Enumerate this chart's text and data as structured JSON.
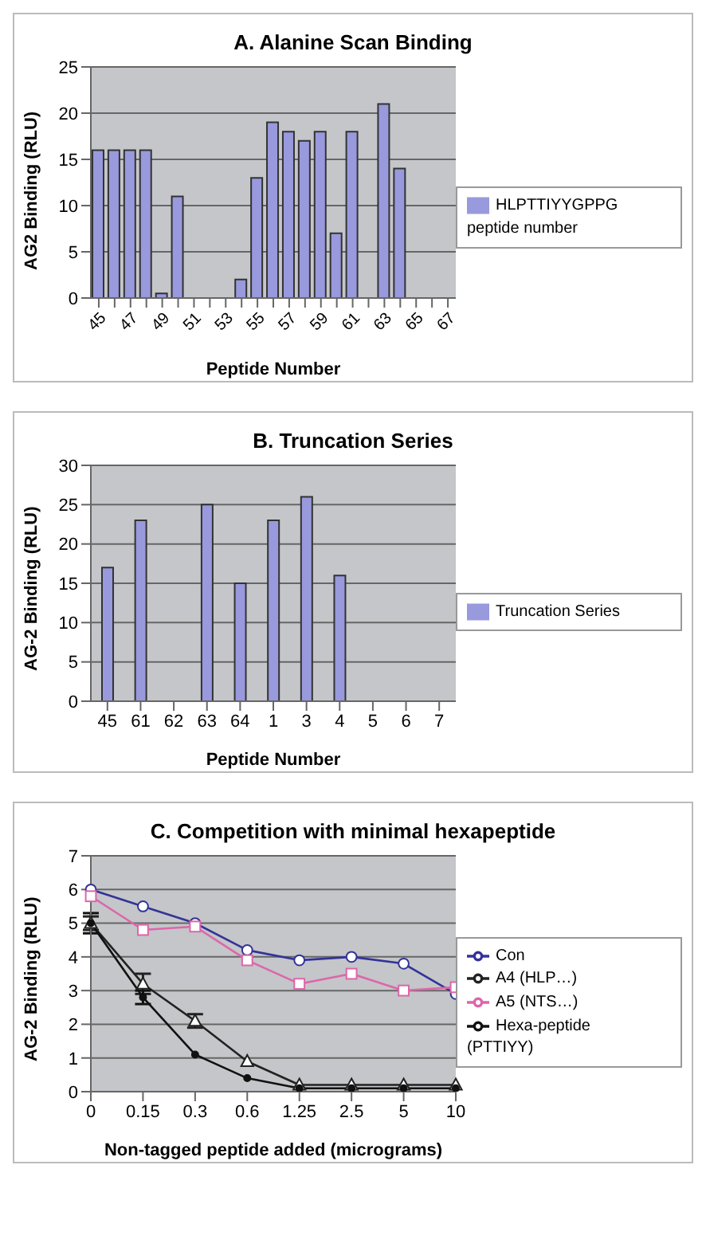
{
  "chart_data": [
    {
      "type": "bar",
      "title": "A. Alanine Scan Binding",
      "xlabel": "Peptide Number",
      "ylabel": "AG2 Binding (RLU)",
      "categories": [
        "45",
        null,
        "47",
        null,
        "49",
        null,
        "51",
        null,
        "53",
        null,
        "55",
        null,
        "57",
        null,
        "59",
        null,
        "61",
        null,
        "63",
        null,
        "65",
        null,
        "67"
      ],
      "series": [
        {
          "name": "HLPTTIYYGPPG peptide number",
          "color": "#9999dd",
          "values": [
            16,
            16,
            16,
            16,
            0.5,
            11,
            0,
            0,
            0,
            2,
            13,
            19,
            18,
            17,
            18,
            7,
            18,
            0,
            21,
            14,
            0,
            0,
            0
          ]
        }
      ],
      "ylim": [
        0,
        25
      ],
      "yticks": [
        0,
        5,
        10,
        15,
        20,
        25
      ],
      "grid": "y",
      "legend": "right"
    },
    {
      "type": "bar",
      "title": "B. Truncation Series",
      "xlabel": "Peptide Number",
      "ylabel": "AG-2 Binding (RLU)",
      "categories": [
        "45",
        "61",
        "62",
        "63",
        "64",
        "1",
        "3",
        "4",
        "5",
        "6",
        "7"
      ],
      "series": [
        {
          "name": "Truncation Series",
          "color": "#9999dd",
          "values": [
            17,
            23,
            0,
            25,
            15,
            23,
            26,
            16,
            0,
            0,
            0
          ]
        }
      ],
      "ylim": [
        0,
        30
      ],
      "yticks": [
        0,
        5,
        10,
        15,
        20,
        25,
        30
      ],
      "grid": "y",
      "legend": "right"
    },
    {
      "type": "line",
      "title": "C. Competition with minimal hexapeptide",
      "xlabel": "Non-tagged peptide added (micrograms)",
      "ylabel": "AG-2 Binding (RLU)",
      "categories": [
        "0",
        "0.15",
        "0.3",
        "0.6",
        "1.25",
        "2.5",
        "5",
        "10"
      ],
      "series": [
        {
          "name": "Con",
          "color": "#333399",
          "marker": "circle",
          "values": [
            6,
            5.5,
            5,
            4.2,
            3.9,
            4,
            3.8,
            2.9
          ]
        },
        {
          "name": "A4 (HLP…)",
          "color": "#222222",
          "marker": "triangle",
          "values": [
            5,
            3.2,
            2.1,
            0.9,
            0.2,
            0.2,
            0.2,
            0.2
          ],
          "errors": [
            0.2,
            0.3,
            0.2,
            null,
            null,
            null,
            null,
            null
          ]
        },
        {
          "name": "A5 (NTS…)",
          "color": "#dd66aa",
          "marker": "square",
          "values": [
            5.8,
            4.8,
            4.9,
            3.9,
            3.2,
            3.5,
            3,
            3.1
          ]
        },
        {
          "name": "Hexa-peptide (PTTIYY)",
          "color": "#111111",
          "marker": "circle-small",
          "values": [
            5,
            2.8,
            1.1,
            0.4,
            0.1,
            0.1,
            0.1,
            0.1
          ],
          "errors": [
            0.3,
            0.2,
            null,
            null,
            null,
            null,
            null,
            null
          ]
        }
      ],
      "ylim": [
        0,
        7
      ],
      "yticks": [
        0,
        1,
        2,
        3,
        4,
        5,
        6,
        7
      ],
      "grid": "y",
      "legend": "right"
    }
  ]
}
